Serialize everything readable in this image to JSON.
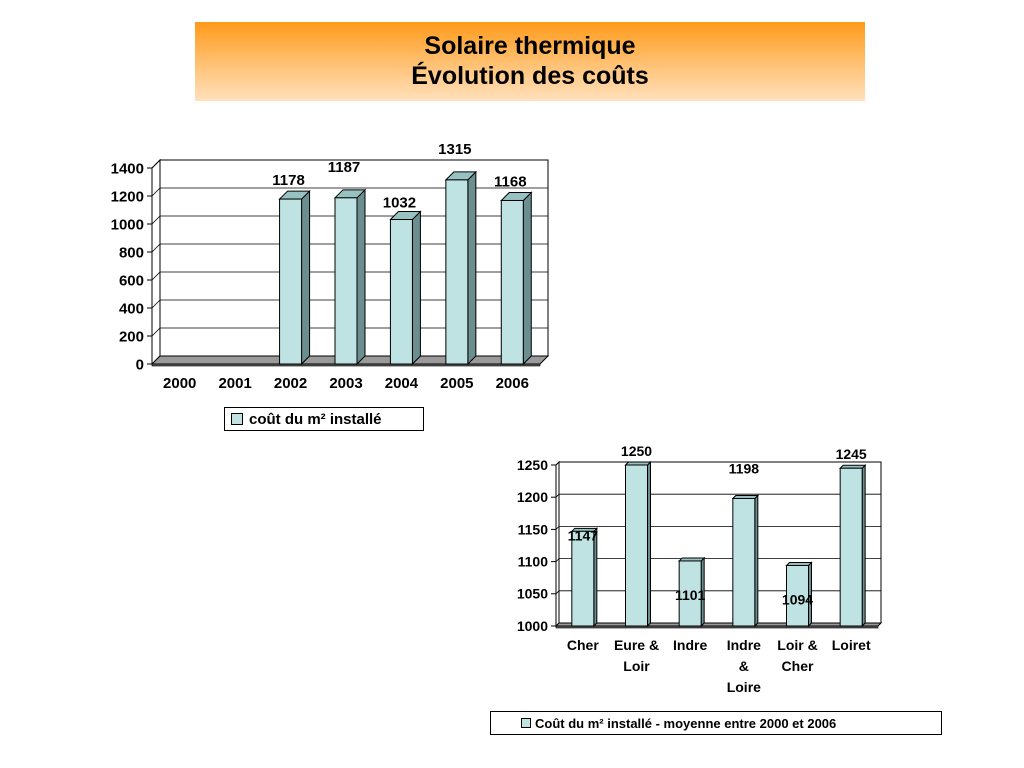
{
  "header": {
    "title_line1": "Solaire thermique",
    "title_line2": "Évolution des coûts"
  },
  "colors": {
    "bar_front": "#bfe3e3",
    "bar_side": "#6b8e8e",
    "bar_top": "#96c2c2",
    "title_gradient_top": "#ff9a1a",
    "title_gradient_bottom": "#ffe0bc"
  },
  "chart_data": [
    {
      "type": "bar",
      "categories": [
        "2000",
        "2001",
        "2002",
        "2003",
        "2004",
        "2005",
        "2006"
      ],
      "values": [
        null,
        null,
        1178,
        1187,
        1032,
        1315,
        1168
      ],
      "data_labels": [
        "",
        "",
        "1178",
        "1187",
        "1032",
        "1315",
        "1168"
      ],
      "yticks": [
        "0",
        "200",
        "400",
        "600",
        "800",
        "1000",
        "1200",
        "1400"
      ],
      "ylim": [
        0,
        1400
      ],
      "legend": "coût du m² installé",
      "legend_position": "bottom",
      "grid": true,
      "three_d": true
    },
    {
      "type": "bar",
      "categories": [
        "Cher",
        "Eure & Loir",
        "Indre",
        "Indre & Loire",
        "Loir & Cher",
        "Loiret"
      ],
      "category_lines": [
        [
          "Cher"
        ],
        [
          "Eure &",
          "Loir"
        ],
        [
          "Indre"
        ],
        [
          "Indre",
          "&",
          "Loire"
        ],
        [
          "Loir &",
          "Cher"
        ],
        [
          "Loiret"
        ]
      ],
      "values": [
        1147,
        1250,
        1101,
        1198,
        1094,
        1245
      ],
      "data_labels": [
        "1147",
        "1250",
        "1101",
        "1198",
        "1094",
        "1245"
      ],
      "yticks": [
        "1000",
        "1050",
        "1100",
        "1150",
        "1200",
        "1250"
      ],
      "ylim": [
        1000,
        1250
      ],
      "legend": "Coût du m² installé - moyenne entre 2000 et 2006",
      "legend_position": "bottom",
      "grid": true,
      "three_d": true
    }
  ]
}
